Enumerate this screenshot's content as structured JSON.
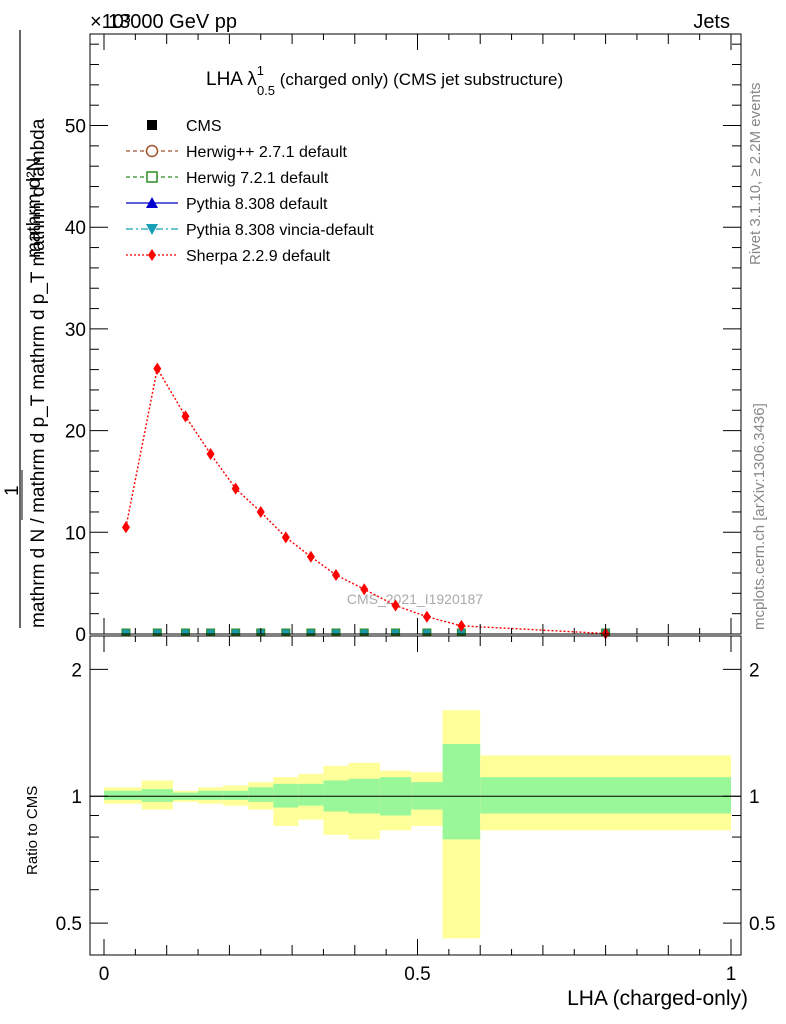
{
  "header": {
    "energy": "13000 GeV pp",
    "category": "Jets",
    "exponent": "×10³"
  },
  "side": {
    "rivet": "Rivet 3.1.10, ≥ 2.2M events",
    "mcplots": "mcplots.cern.ch [arXiv:1306.3436]"
  },
  "watermark": "CMS_2021_I1920187",
  "title": {
    "main": "LHA λ",
    "sup": "1",
    "sub": "0.5",
    "rest": " (charged only) (CMS jet substructure)"
  },
  "yaxis": {
    "label_num": "mathrm d²N",
    "label_pre": "1",
    "label_den": "mathrm d N / mathrm d p_T mathrm d p_T mathrm d lambda",
    "ratio_label": "Ratio to CMS"
  },
  "xaxis": {
    "label": "LHA (charged-only)"
  },
  "legend": [
    {
      "name": "CMS",
      "color": "#000000",
      "marker": "square-filled",
      "line": "none"
    },
    {
      "name": "Herwig++ 2.7.1 default",
      "color": "#a0522d",
      "marker": "circle-open",
      "line": "dashed"
    },
    {
      "name": "Herwig 7.2.1 default",
      "color": "#2e8b22",
      "marker": "square-open",
      "line": "dashed"
    },
    {
      "name": "Pythia 8.308 default",
      "color": "#0000cc",
      "marker": "triangle-up",
      "line": "solid"
    },
    {
      "name": "Pythia 8.308 vincia-default",
      "color": "#17a0b8",
      "marker": "triangle-down",
      "line": "dashdot"
    },
    {
      "name": "Sherpa 2.2.9 default",
      "color": "#ff0000",
      "marker": "diamond",
      "line": "dotted"
    }
  ],
  "chart_data": {
    "type": "line",
    "x": [
      0.035,
      0.085,
      0.13,
      0.17,
      0.21,
      0.25,
      0.29,
      0.33,
      0.37,
      0.415,
      0.465,
      0.515,
      0.57,
      0.8
    ],
    "series": [
      {
        "name": "CMS",
        "values": [
          0,
          0,
          0,
          0,
          0,
          0,
          0,
          0,
          0,
          0,
          0,
          0,
          0,
          0
        ]
      },
      {
        "name": "Sherpa 2.2.9 default",
        "values": [
          10.5,
          26.1,
          21.4,
          17.7,
          14.3,
          12.0,
          9.5,
          7.6,
          5.8,
          4.4,
          2.8,
          1.7,
          0.8,
          0.05
        ]
      }
    ],
    "ratio": {
      "edges": [
        0,
        0.06,
        0.11,
        0.15,
        0.19,
        0.23,
        0.27,
        0.31,
        0.35,
        0.39,
        0.44,
        0.49,
        0.54,
        0.6,
        1.0
      ],
      "green": [
        [
          0.98,
          1.03
        ],
        [
          0.97,
          1.04
        ],
        [
          0.98,
          1.02
        ],
        [
          0.98,
          1.03
        ],
        [
          0.98,
          1.03
        ],
        [
          0.97,
          1.05
        ],
        [
          0.94,
          1.07
        ],
        [
          0.95,
          1.07
        ],
        [
          0.92,
          1.09
        ],
        [
          0.91,
          1.1
        ],
        [
          0.9,
          1.11
        ],
        [
          0.93,
          1.08
        ],
        [
          0.79,
          1.33
        ],
        [
          0.91,
          1.11
        ]
      ],
      "yellow": [
        [
          0.96,
          1.05
        ],
        [
          0.93,
          1.09
        ],
        [
          0.97,
          1.03
        ],
        [
          0.96,
          1.05
        ],
        [
          0.95,
          1.06
        ],
        [
          0.93,
          1.08
        ],
        [
          0.85,
          1.11
        ],
        [
          0.88,
          1.13
        ],
        [
          0.81,
          1.18
        ],
        [
          0.79,
          1.2
        ],
        [
          0.83,
          1.15
        ],
        [
          0.85,
          1.14
        ],
        [
          0.46,
          1.6
        ],
        [
          0.83,
          1.25
        ]
      ]
    },
    "xlim": [
      0,
      1
    ],
    "ylim": [
      0,
      59
    ],
    "ratio_ylim": [
      0.42,
      2.4
    ],
    "xticks": [
      "0",
      "0.5",
      "1"
    ],
    "yticks": [
      "0",
      "10",
      "20",
      "30",
      "40",
      "50"
    ],
    "ratio_yticks": [
      "0.5",
      "1",
      "2"
    ],
    "colors": {
      "green": "#99f799",
      "yellow": "#ffff99",
      "sherpa": "#ff0000",
      "marker": "#199aa8"
    }
  }
}
